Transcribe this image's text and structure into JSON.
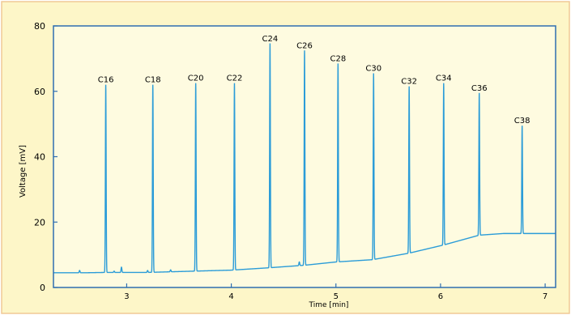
{
  "chart_data": {
    "type": "line",
    "xlabel": "Time [min]",
    "ylabel": "Voltage [mV]",
    "xlim": [
      2.3,
      7.1
    ],
    "ylim": [
      0,
      80
    ],
    "x_ticks": [
      3,
      4,
      5,
      6,
      7
    ],
    "y_ticks": [
      0,
      20,
      40,
      60,
      80
    ],
    "grid": false,
    "series": [
      {
        "baseline": [
          [
            2.3,
            4.5
          ],
          [
            2.6,
            4.5
          ],
          [
            2.8,
            4.6
          ],
          [
            3.2,
            4.6
          ],
          [
            3.65,
            5.0
          ],
          [
            4.0,
            5.3
          ],
          [
            4.35,
            6.0
          ],
          [
            4.7,
            6.8
          ],
          [
            5.0,
            7.8
          ],
          [
            5.35,
            8.5
          ],
          [
            5.7,
            10.5
          ],
          [
            6.03,
            13.0
          ],
          [
            6.37,
            16.0
          ],
          [
            6.6,
            16.5
          ],
          [
            7.1,
            16.5
          ]
        ],
        "peaks": [
          {
            "label": "C16",
            "x": 2.8,
            "y": 62
          },
          {
            "label": "C18",
            "x": 3.25,
            "y": 62
          },
          {
            "label": "C20",
            "x": 3.66,
            "y": 62.5
          },
          {
            "label": "C22",
            "x": 4.03,
            "y": 62.5
          },
          {
            "label": "C24",
            "x": 4.37,
            "y": 74.5
          },
          {
            "label": "C26",
            "x": 4.7,
            "y": 72.5
          },
          {
            "label": "C28",
            "x": 5.02,
            "y": 68.5
          },
          {
            "label": "C30",
            "x": 5.36,
            "y": 65.5
          },
          {
            "label": "C32",
            "x": 5.7,
            "y": 61.5
          },
          {
            "label": "C34",
            "x": 6.03,
            "y": 62.5
          },
          {
            "label": "C36",
            "x": 6.37,
            "y": 59.5
          },
          {
            "label": "C38",
            "x": 6.78,
            "y": 49.5
          }
        ],
        "minor_peaks": [
          [
            2.55,
            5.2
          ],
          [
            2.88,
            5.0
          ],
          [
            2.95,
            6.2
          ],
          [
            3.2,
            5.2
          ],
          [
            3.42,
            5.4
          ],
          [
            4.65,
            7.8
          ]
        ]
      }
    ],
    "colors": {
      "background": "#fdf6c8",
      "border": "#f0c896",
      "plot_area": "#fefbe0",
      "axis": "#2e6eb0",
      "trace": "#2b9cd8"
    }
  }
}
